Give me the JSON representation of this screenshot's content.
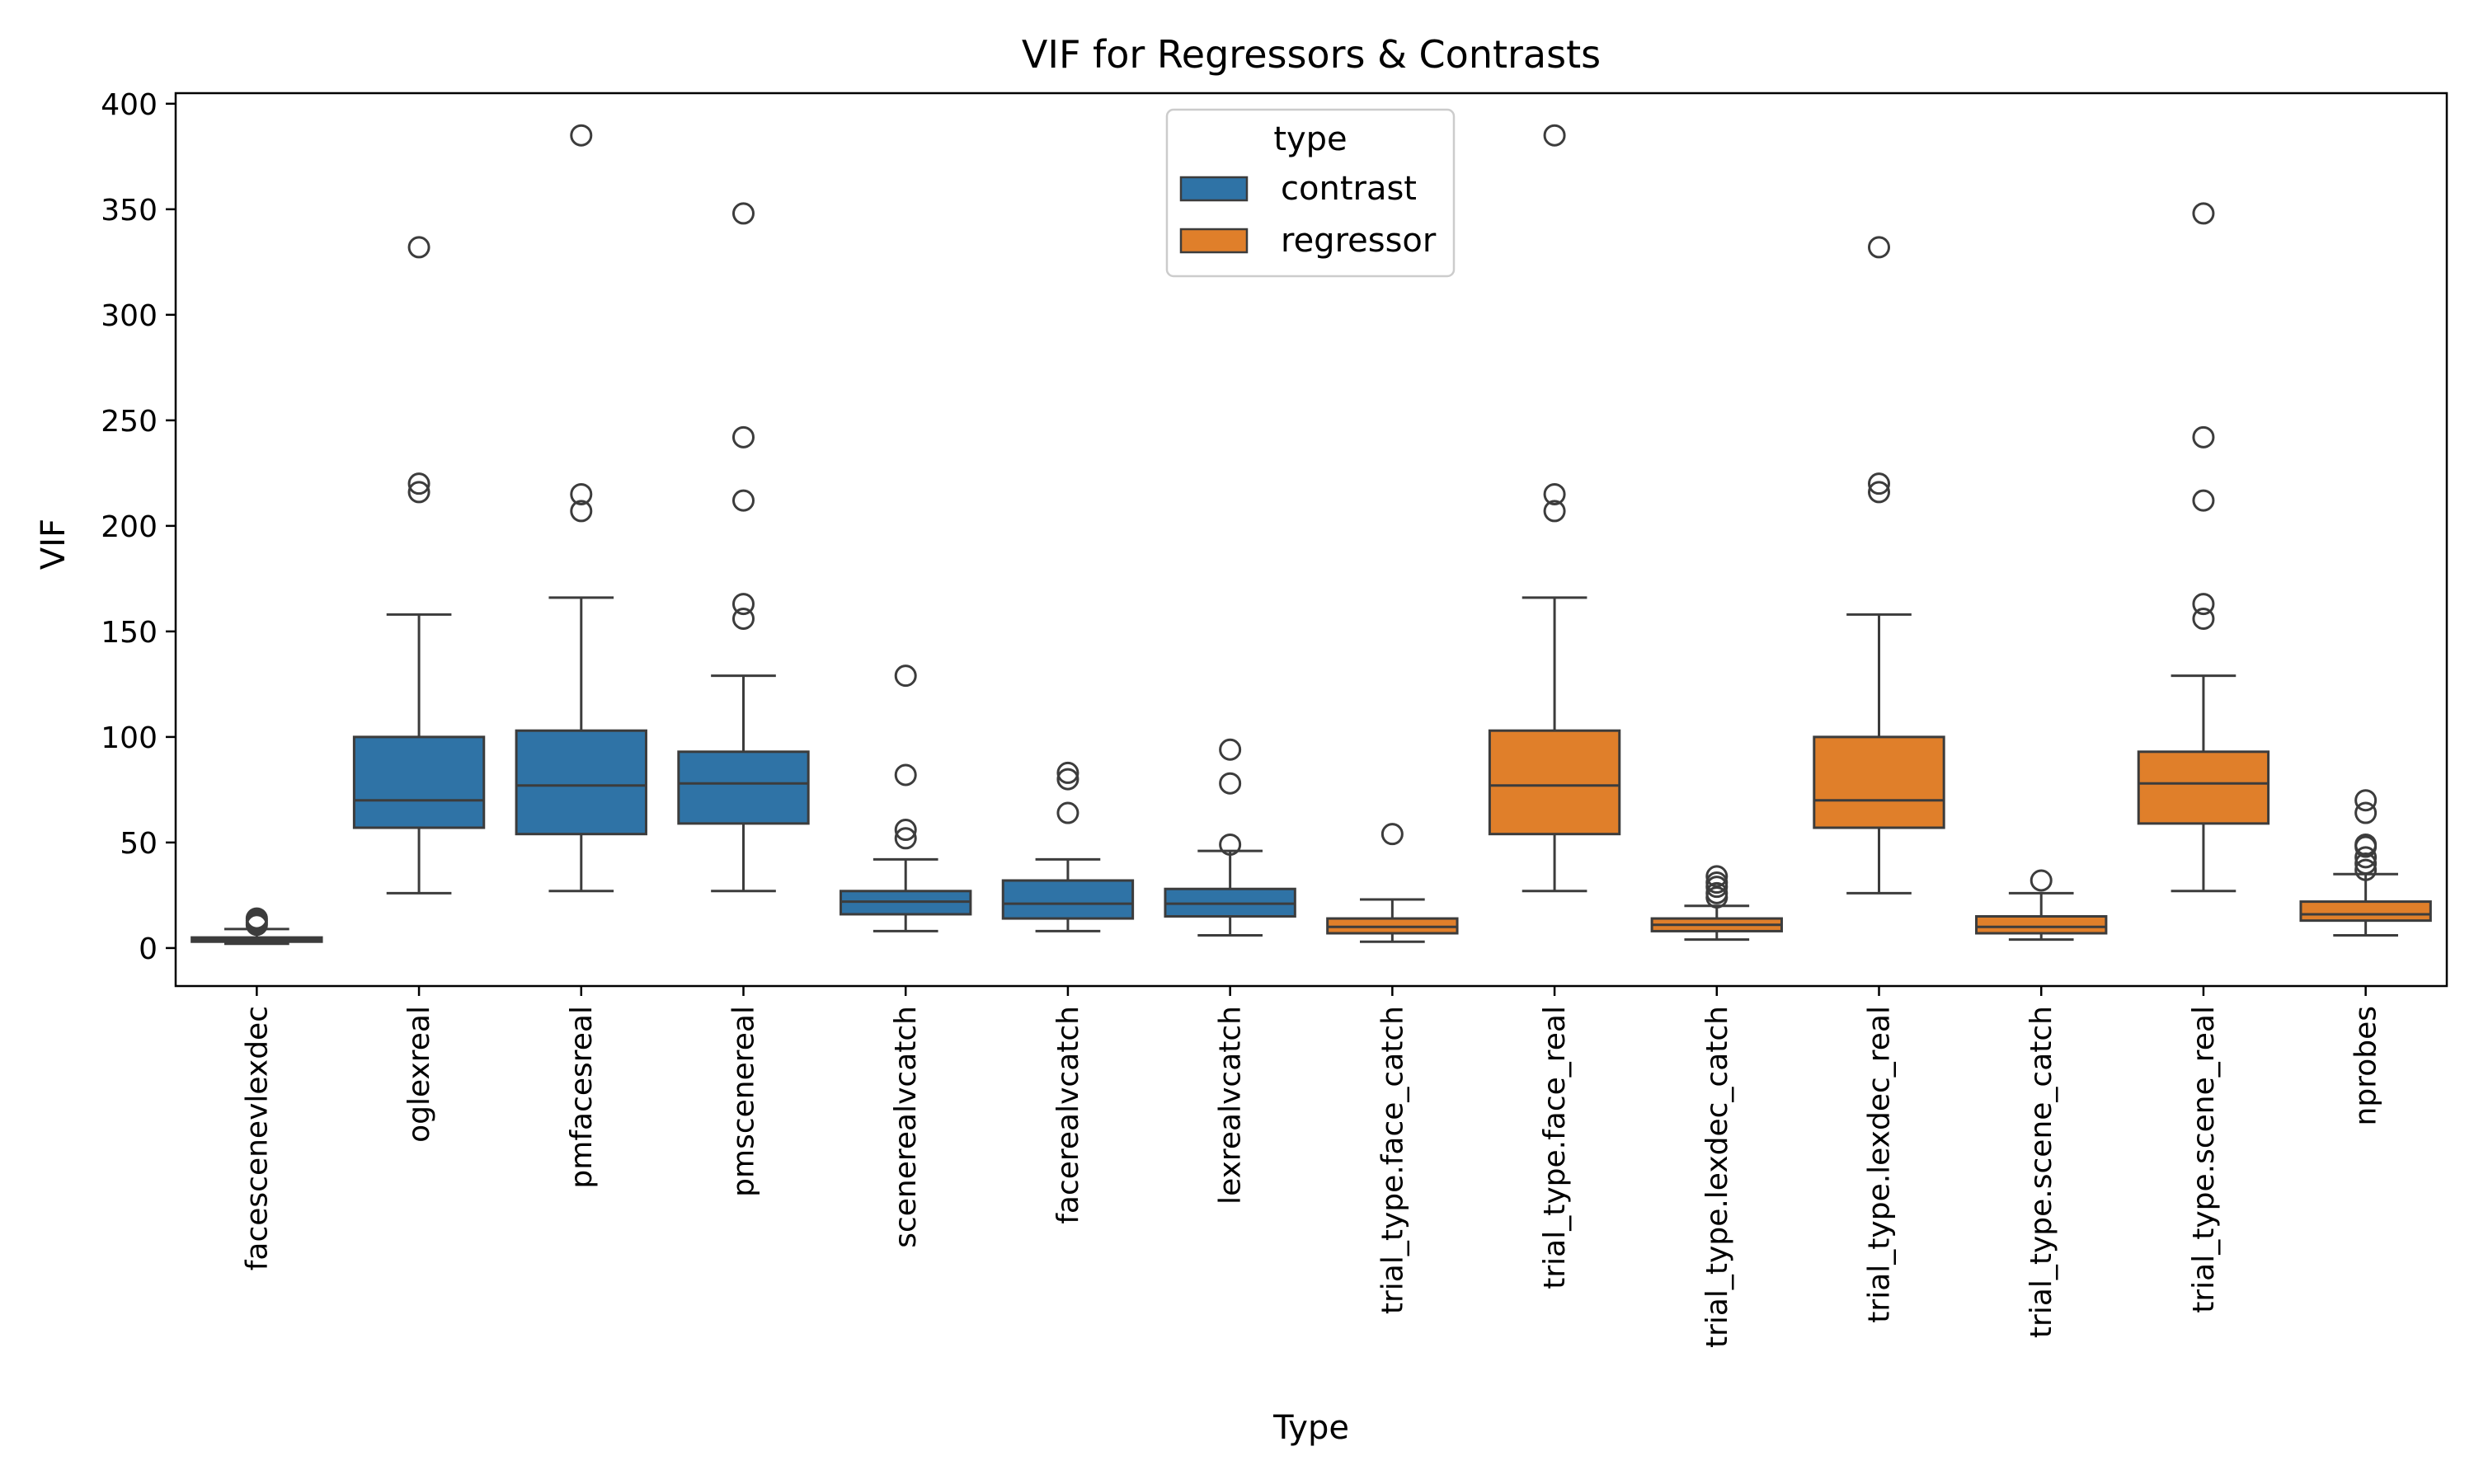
{
  "chart_data": {
    "type": "box",
    "title": "VIF for Regressors & Contrasts",
    "xlabel": "Type",
    "ylabel": "VIF",
    "ylim": [
      -18,
      405
    ],
    "yticks": [
      0,
      50,
      100,
      150,
      200,
      250,
      300,
      350,
      400
    ],
    "grid": false,
    "legend": {
      "title": "type",
      "placement": "top-center",
      "entries": [
        {
          "label": "contrast",
          "color": "#2f73a6"
        },
        {
          "label": "regressor",
          "color": "#e07f2a"
        }
      ]
    },
    "categories": [
      {
        "label": "facescenevlexdec",
        "type": "contrast",
        "whislo": 2,
        "q1": 3,
        "median": 4,
        "q3": 5,
        "whishi": 9,
        "fliers": [
          11,
          12,
          13,
          14
        ]
      },
      {
        "label": "oglexreal",
        "type": "contrast",
        "whislo": 26,
        "q1": 57,
        "median": 70,
        "q3": 100,
        "whishi": 158,
        "fliers": [
          216,
          220,
          332
        ]
      },
      {
        "label": "pmfacesreal",
        "type": "contrast",
        "whislo": 27,
        "q1": 54,
        "median": 77,
        "q3": 103,
        "whishi": 166,
        "fliers": [
          207,
          215,
          385
        ]
      },
      {
        "label": "pmscenereal",
        "type": "contrast",
        "whislo": 27,
        "q1": 59,
        "median": 78,
        "q3": 93,
        "whishi": 129,
        "fliers": [
          156,
          163,
          212,
          242,
          348
        ]
      },
      {
        "label": "scenerealvcatch",
        "type": "contrast",
        "whislo": 8,
        "q1": 16,
        "median": 22,
        "q3": 27,
        "whishi": 42,
        "fliers": [
          52,
          56,
          82,
          129
        ]
      },
      {
        "label": "facerealvcatch",
        "type": "contrast",
        "whislo": 8,
        "q1": 14,
        "median": 21,
        "q3": 32,
        "whishi": 42,
        "fliers": [
          64,
          80,
          83
        ]
      },
      {
        "label": "lexrealvcatch",
        "type": "contrast",
        "whislo": 6,
        "q1": 15,
        "median": 21,
        "q3": 28,
        "whishi": 46,
        "fliers": [
          49,
          78,
          94
        ]
      },
      {
        "label": "trial_type.face_catch",
        "type": "regressor",
        "whislo": 3,
        "q1": 7,
        "median": 10,
        "q3": 14,
        "whishi": 23,
        "fliers": [
          54
        ]
      },
      {
        "label": "trial_type.face_real",
        "type": "regressor",
        "whislo": 27,
        "q1": 54,
        "median": 77,
        "q3": 103,
        "whishi": 166,
        "fliers": [
          207,
          215,
          385
        ]
      },
      {
        "label": "trial_type.lexdec_catch",
        "type": "regressor",
        "whislo": 4,
        "q1": 8,
        "median": 11,
        "q3": 14,
        "whishi": 20,
        "fliers": [
          24,
          26,
          29,
          31,
          34
        ]
      },
      {
        "label": "trial_type.lexdec_real",
        "type": "regressor",
        "whislo": 26,
        "q1": 57,
        "median": 70,
        "q3": 100,
        "whishi": 158,
        "fliers": [
          216,
          220,
          332
        ]
      },
      {
        "label": "trial_type.scene_catch",
        "type": "regressor",
        "whislo": 4,
        "q1": 7,
        "median": 10,
        "q3": 15,
        "whishi": 26,
        "fliers": [
          32
        ]
      },
      {
        "label": "trial_type.scene_real",
        "type": "regressor",
        "whislo": 27,
        "q1": 59,
        "median": 78,
        "q3": 93,
        "whishi": 129,
        "fliers": [
          156,
          163,
          212,
          242,
          348
        ]
      },
      {
        "label": "nprobes",
        "type": "regressor",
        "whislo": 6,
        "q1": 13,
        "median": 16,
        "q3": 22,
        "whishi": 35,
        "fliers": [
          37,
          40,
          43,
          48,
          49,
          64,
          70
        ]
      }
    ]
  }
}
